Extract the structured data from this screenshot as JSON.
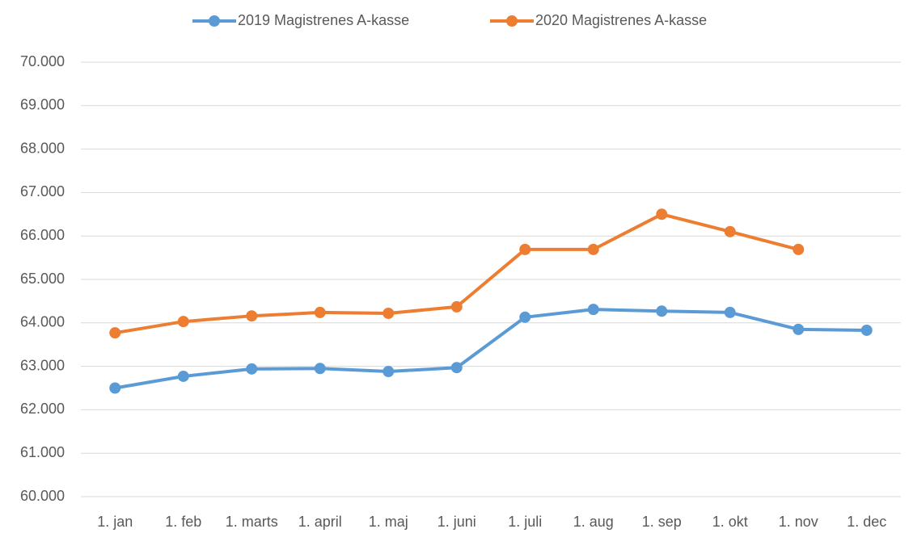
{
  "chart_data": {
    "type": "line",
    "categories": [
      "1. jan",
      "1. feb",
      "1. marts",
      "1. april",
      "1. maj",
      "1. juni",
      "1. juli",
      "1. aug",
      "1. sep",
      "1. okt",
      "1. nov",
      "1. dec"
    ],
    "series": [
      {
        "name": "2019 Magistrenes A-kasse",
        "color": "#5b9bd5",
        "values": [
          62500,
          62770,
          62940,
          62950,
          62880,
          62970,
          64130,
          64310,
          64270,
          64240,
          63850,
          63830
        ]
      },
      {
        "name": "2020 Magistrenes A-kasse",
        "color": "#ed7d31",
        "values": [
          63770,
          64030,
          64160,
          64240,
          64220,
          64370,
          65690,
          65690,
          66500,
          66100,
          65690,
          null
        ]
      }
    ],
    "ylim": [
      60000,
      70000
    ],
    "yticks": [
      {
        "value": 60000,
        "label": "60.000"
      },
      {
        "value": 61000,
        "label": "61.000"
      },
      {
        "value": 62000,
        "label": "62.000"
      },
      {
        "value": 63000,
        "label": "63.000"
      },
      {
        "value": 64000,
        "label": "64.000"
      },
      {
        "value": 65000,
        "label": "65.000"
      },
      {
        "value": 66000,
        "label": "66.000"
      },
      {
        "value": 67000,
        "label": "67.000"
      },
      {
        "value": 68000,
        "label": "68.000"
      },
      {
        "value": 69000,
        "label": "69.000"
      },
      {
        "value": 70000,
        "label": "70.000"
      }
    ],
    "grid": true,
    "legend": "top"
  }
}
